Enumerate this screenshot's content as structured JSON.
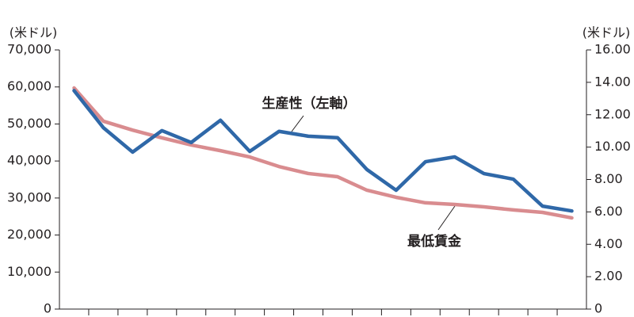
{
  "chart_data": {
    "type": "line",
    "y_unit": "(米ドル)",
    "y2_unit": "(米ドル)",
    "categories": [
      null,
      null,
      null,
      null,
      null,
      null,
      null,
      null,
      null,
      null,
      null,
      null,
      null,
      null,
      null,
      null,
      null,
      null
    ],
    "series": [
      {
        "name": "生産性（左軸）",
        "color": "#2f68a8",
        "values": [
          59000,
          49000,
          42400,
          48200,
          45000,
          51000,
          42600,
          48000,
          46700,
          46300,
          37700,
          32100,
          39800,
          41100,
          36600,
          35100,
          27800,
          26500
        ]
      },
      {
        "name": "最低賃金",
        "color": "#d98c8f",
        "axis": "y2",
        "values": [
          13.65,
          11.6,
          11.05,
          10.57,
          10.13,
          9.78,
          9.39,
          8.8,
          8.37,
          8.17,
          7.34,
          6.9,
          6.56,
          6.46,
          6.31,
          6.12,
          5.97,
          5.63
        ]
      }
    ],
    "ylim": [
      0,
      70000
    ],
    "yticks": [
      0,
      {
        "value": 10000,
        "label": "10,000"
      },
      {
        "value": 20000,
        "label": "20,000"
      },
      {
        "value": 30000,
        "label": "30,000"
      },
      {
        "value": 40000,
        "label": "40,000"
      },
      {
        "value": 50000,
        "label": "50,000"
      },
      {
        "value": 60000,
        "label": "60,000"
      },
      {
        "value": 70000,
        "label": "70,000"
      }
    ],
    "y2lim": [
      0,
      16
    ],
    "y2ticks": [
      0,
      {
        "value": 2,
        "label": "2.00"
      },
      {
        "value": 4,
        "label": "4.00"
      },
      {
        "value": 6,
        "label": "6.00"
      },
      {
        "value": 8,
        "label": "8.00"
      },
      {
        "value": 10,
        "label": "10.00"
      },
      {
        "value": 12,
        "label": "12.00"
      },
      {
        "value": 14,
        "label": "14.00"
      },
      {
        "value": 16,
        "label": "16.00"
      }
    ],
    "grid": false
  }
}
